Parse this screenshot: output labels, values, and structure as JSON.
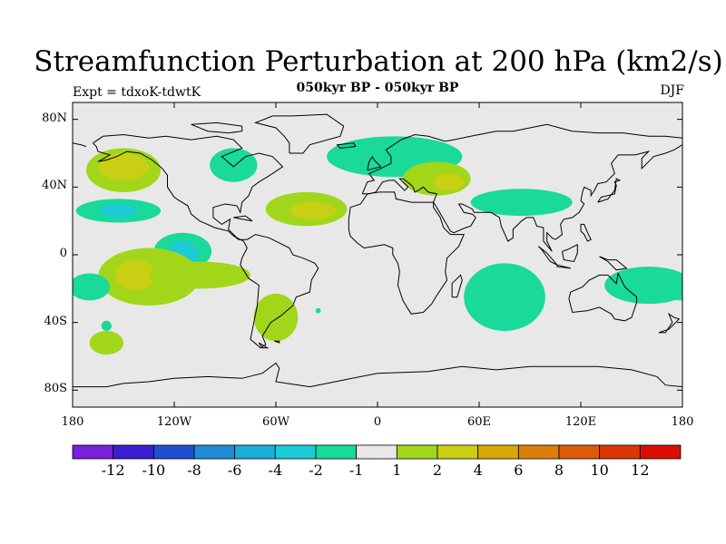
{
  "title": "Streamfunction Perturbation at 200 hPa (km2/s)",
  "subtitle": "050kyr BP - 050kyr BP",
  "experiment_label": "Expt = tdxoK-tdwtK",
  "season_label": "DJF",
  "map": {
    "lon_range": [
      -180,
      180
    ],
    "lat_range": [
      -90,
      90
    ],
    "lat_ticks": [
      {
        "lat": 80,
        "label": "80N"
      },
      {
        "lat": 40,
        "label": "40N"
      },
      {
        "lat": 0,
        "label": "0"
      },
      {
        "lat": -40,
        "label": "40S"
      },
      {
        "lat": -80,
        "label": "80S"
      }
    ],
    "lon_ticks": [
      {
        "lon": -180,
        "label": "180"
      },
      {
        "lon": -120,
        "label": "120W"
      },
      {
        "lon": -60,
        "label": "60W"
      },
      {
        "lon": 0,
        "label": "0"
      },
      {
        "lon": 60,
        "label": "60E"
      },
      {
        "lon": 120,
        "label": "120E"
      },
      {
        "lon": 180,
        "label": "180"
      }
    ],
    "background_color": "#e8e8e8",
    "coastline_color": "#000000"
  },
  "colorbar": {
    "colors": [
      "#7a1fdb",
      "#3a1fd0",
      "#1f4fd0",
      "#1f8bd6",
      "#18aed9",
      "#1ccbd6",
      "#19d99b",
      "#e8e8e8",
      "#a2d61a",
      "#c9cf13",
      "#d8a808",
      "#dc7f08",
      "#dc5a08",
      "#dc3508",
      "#d90f06"
    ],
    "labels": [
      "-12",
      "-10",
      "-8",
      "-6",
      "-4",
      "-2",
      "-1",
      "1",
      "2",
      "4",
      "6",
      "8",
      "10",
      "12"
    ]
  }
}
